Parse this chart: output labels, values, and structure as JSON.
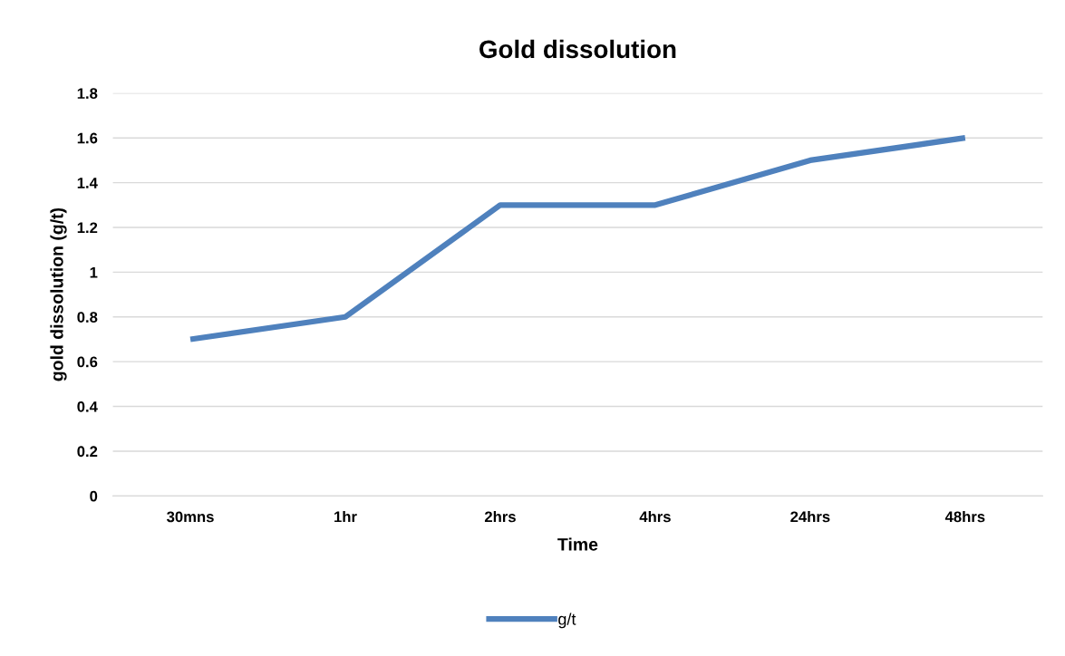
{
  "chart_data": {
    "type": "line",
    "title": "Gold dissolution",
    "xlabel": "Time",
    "ylabel": "gold dissolution (g/t)",
    "categories": [
      "30mns",
      "1hr",
      "2hrs",
      "4hrs",
      "24hrs",
      "48hrs"
    ],
    "series": [
      {
        "name": "g/t",
        "color": "#4f81bd",
        "values": [
          0.7,
          0.8,
          1.3,
          1.3,
          1.5,
          1.6
        ]
      }
    ],
    "ylim": [
      0,
      1.8
    ],
    "yticks": [
      0,
      0.2,
      0.4,
      0.6,
      0.8,
      1,
      1.2,
      1.4,
      1.6,
      1.8
    ],
    "grid": "y",
    "legend": "bottom",
    "marker": "none",
    "line_style": "solid"
  }
}
